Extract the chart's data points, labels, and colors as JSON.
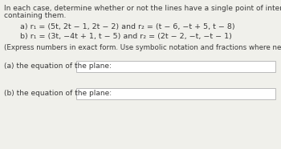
{
  "bg_color": "#f0f0eb",
  "text_color": "#3a3a3a",
  "box_bg": "#ffffff",
  "box_edge": "#bbbbbb",
  "title_line1": "In each case, determine whether or not the lines have a single point of intersection. If they do, give an equation of a plane",
  "title_line2": "containing them.",
  "part_a": "a) r₁ = (5t, 2t − 1, 2t − 2) and r₂ = (t − 6, −t + 5, t − 8)",
  "part_b": "b) r₁ = (3t, −4t + 1, t − 5) and r₂ = (2t − 2, −t, −t − 1)",
  "note": "(Express numbers in exact form. Use symbolic notation and fractions where needed. Enter DNE if lines do not intersect.)",
  "label_a": "(a) the equation of the plane:",
  "label_b": "(b) the equation of the plane:",
  "font_size_title": 6.5,
  "font_size_parts": 6.8,
  "font_size_note": 6.3,
  "font_size_labels": 6.5
}
